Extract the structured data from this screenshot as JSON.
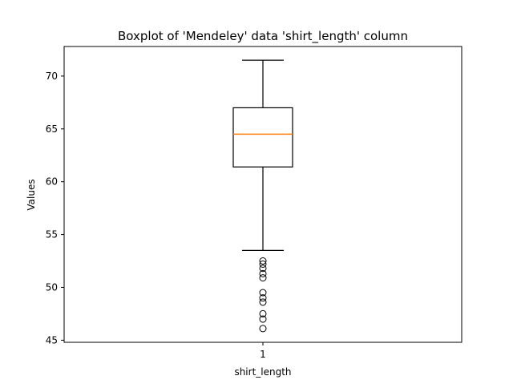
{
  "chart_data": {
    "type": "boxplot",
    "title": "Boxplot of 'Mendeley' data 'shirt_length' column",
    "xlabel": "shirt_length",
    "ylabel": "Values",
    "categories": [
      "1"
    ],
    "ylim": [
      44.8,
      72.8
    ],
    "yticks": [
      45,
      50,
      55,
      60,
      65,
      70
    ],
    "ytick_labels": [
      "45",
      "50",
      "55",
      "60",
      "65",
      "70"
    ],
    "grid": false,
    "boxes": [
      {
        "category": "1",
        "whisker_low": 53.5,
        "q1": 61.4,
        "median": 64.5,
        "q3": 67.0,
        "whisker_high": 71.5,
        "outliers": [
          52.5,
          52.2,
          51.8,
          51.3,
          50.9,
          49.5,
          49.0,
          48.6,
          47.5,
          47.0,
          46.1
        ]
      }
    ],
    "colors": {
      "box": "#000000",
      "median": "#ff7f0e",
      "outlier": "#000000"
    }
  }
}
